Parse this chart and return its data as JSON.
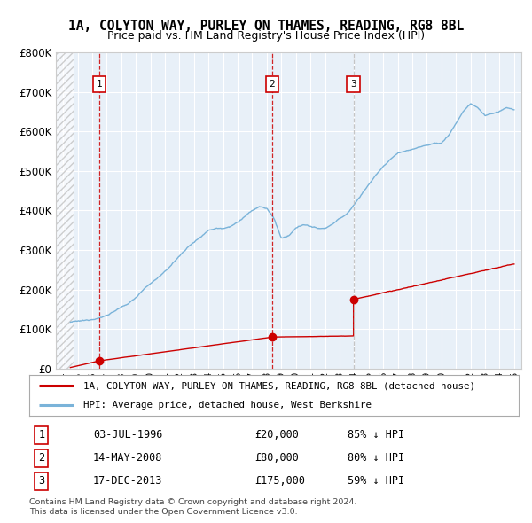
{
  "title": "1A, COLYTON WAY, PURLEY ON THAMES, READING, RG8 8BL",
  "subtitle": "Price paid vs. HM Land Registry's House Price Index (HPI)",
  "legend_property": "1A, COLYTON WAY, PURLEY ON THAMES, READING, RG8 8BL (detached house)",
  "legend_hpi": "HPI: Average price, detached house, West Berkshire",
  "footer1": "Contains HM Land Registry data © Crown copyright and database right 2024.",
  "footer2": "This data is licensed under the Open Government Licence v3.0.",
  "transactions": [
    {
      "date_str": "03-JUL-1996",
      "year": 1996.5,
      "price": 20000,
      "label": "1",
      "pct": "85% ↓ HPI",
      "vline_color": "#cc0000",
      "vline_style": "--"
    },
    {
      "date_str": "14-MAY-2008",
      "year": 2008.37,
      "price": 80000,
      "label": "2",
      "pct": "80% ↓ HPI",
      "vline_color": "#cc0000",
      "vline_style": "--"
    },
    {
      "date_str": "17-DEC-2013",
      "year": 2013.96,
      "price": 175000,
      "label": "3",
      "pct": "59% ↓ HPI",
      "vline_color": "#bbbbbb",
      "vline_style": "--"
    }
  ],
  "ylim": [
    0,
    800000
  ],
  "xlim_start": 1993.5,
  "xlim_end": 2025.5,
  "hatch_end": 1994.8,
  "bg_color": "#e8f0f8",
  "hpi_color": "#7ab3d9",
  "property_color": "#cc0000",
  "title_fontsize": 11,
  "subtitle_fontsize": 9.5,
  "font_family": "DejaVu Sans Mono"
}
